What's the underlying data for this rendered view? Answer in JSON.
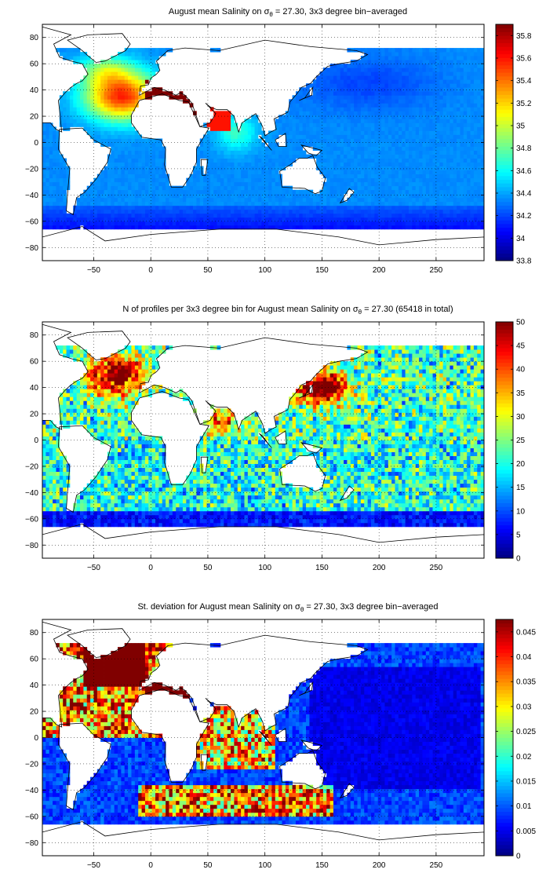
{
  "figure": {
    "panels": [
      {
        "title_pre": "August mean Salinity on σ",
        "title_sub": "θ",
        "title_post": " = 27.30, 3x3 degree bin−averaged",
        "colormap": "jet"
      },
      {
        "title_pre": "N of profiles per 3x3 degree bin for August mean Salinity on σ",
        "title_sub": "θ",
        "title_post": " = 27.30 (65418 in total)",
        "colormap": "jet"
      },
      {
        "title_pre": "St. deviation for August mean Salinity on σ",
        "title_sub": "θ",
        "title_post": " = 27.30, 3x3 degree bin−averaged",
        "colormap": "jet"
      }
    ]
  },
  "chart_data": [
    {
      "type": "heatmap",
      "title": "August mean Salinity on σθ = 27.30, 3x3 degree bin−averaged",
      "xlabel": "",
      "ylabel": "",
      "xlim": [
        -95,
        292
      ],
      "ylim": [
        -90,
        90
      ],
      "xticks": [
        -50,
        0,
        50,
        100,
        150,
        200,
        250
      ],
      "yticks": [
        -80,
        -60,
        -40,
        -20,
        0,
        20,
        40,
        60,
        80
      ],
      "grid": "dotted",
      "bin_size_deg": 3,
      "colorbar": {
        "range": [
          33.8,
          35.9
        ],
        "ticks": [
          33.8,
          34,
          34.2,
          34.4,
          34.6,
          34.8,
          35,
          35.2,
          35.4,
          35.6,
          35.8
        ],
        "tick_labels": [
          "33.8",
          "34",
          "34.2",
          "34.4",
          "34.6",
          "34.8",
          "35",
          "35.2",
          "35.4",
          "35.6",
          "35.8"
        ]
      }
    },
    {
      "type": "heatmap",
      "title": "N of profiles per 3x3 degree bin for August mean Salinity on σθ = 27.30 (65418 in total)",
      "xlabel": "",
      "ylabel": "",
      "xlim": [
        -95,
        292
      ],
      "ylim": [
        -90,
        90
      ],
      "xticks": [
        -50,
        0,
        50,
        100,
        150,
        200,
        250
      ],
      "yticks": [
        -80,
        -60,
        -40,
        -20,
        0,
        20,
        40,
        60,
        80
      ],
      "grid": "dotted",
      "bin_size_deg": 3,
      "total_profiles": 65418,
      "colorbar": {
        "range": [
          0,
          50
        ],
        "ticks": [
          0,
          5,
          10,
          15,
          20,
          25,
          30,
          35,
          40,
          45,
          50
        ],
        "tick_labels": [
          "0",
          "5",
          "10",
          "15",
          "20",
          "25",
          "30",
          "35",
          "40",
          "45",
          "50"
        ]
      }
    },
    {
      "type": "heatmap",
      "title": "St. deviation for August mean Salinity on σθ = 27.30, 3x3 degree bin−averaged",
      "xlabel": "",
      "ylabel": "",
      "xlim": [
        -95,
        292
      ],
      "ylim": [
        -90,
        90
      ],
      "xticks": [
        -50,
        0,
        50,
        100,
        150,
        200,
        250
      ],
      "yticks": [
        -80,
        -60,
        -40,
        -20,
        0,
        20,
        40,
        60,
        80
      ],
      "grid": "dotted",
      "bin_size_deg": 3,
      "colorbar": {
        "range": [
          0,
          0.0475
        ],
        "ticks": [
          0,
          0.005,
          0.01,
          0.015,
          0.02,
          0.025,
          0.03,
          0.035,
          0.04,
          0.045
        ],
        "tick_labels": [
          "0",
          "0.005",
          "0.01",
          "0.015",
          "0.02",
          "0.025",
          "0.03",
          "0.035",
          "0.04",
          "0.045"
        ]
      }
    }
  ]
}
